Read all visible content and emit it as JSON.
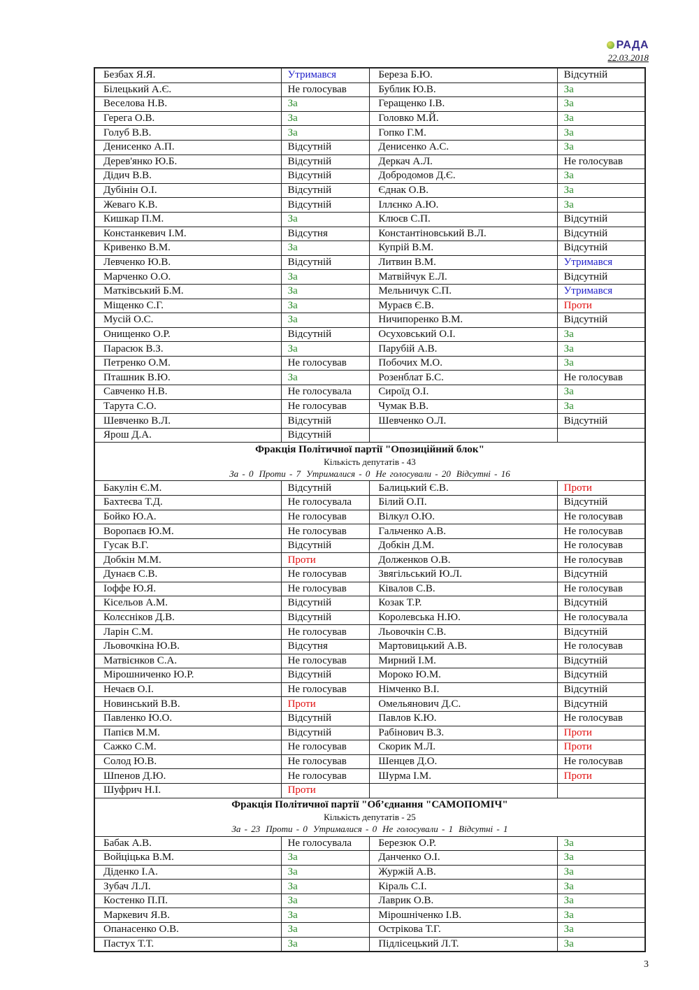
{
  "header": {
    "logo_text": "РАДА",
    "date": "22.03.2018"
  },
  "page_number": "3",
  "vote_colors": {
    "За": "#2a8a2a",
    "Проти": "#e01010",
    "Утримався": "#1c1cc8"
  },
  "sections": [
    {
      "rows": [
        [
          "Безбах Я.Я.",
          "Утримався",
          "Береза Б.Ю.",
          "Відсутній"
        ],
        [
          "Білецький А.Є.",
          "Не голосував",
          "Бублик Ю.В.",
          "За"
        ],
        [
          "Веселова Н.В.",
          "За",
          "Геращенко І.В.",
          "За"
        ],
        [
          "Герега О.В.",
          "За",
          "Головко М.Й.",
          "За"
        ],
        [
          "Голуб В.В.",
          "За",
          "Гопко Г.М.",
          "За"
        ],
        [
          "Денисенко А.П.",
          "Відсутній",
          "Денисенко А.С.",
          "За"
        ],
        [
          "Дерев'янко Ю.Б.",
          "Відсутній",
          "Деркач А.Л.",
          "Не голосував"
        ],
        [
          "Дідич В.В.",
          "Відсутній",
          "Добродомов Д.Є.",
          "За"
        ],
        [
          "Дубінін О.І.",
          "Відсутній",
          "Єднак О.В.",
          "За"
        ],
        [
          "Жеваго К.В.",
          "Відсутній",
          "Іллєнко А.Ю.",
          "За"
        ],
        [
          "Кишкар П.М.",
          "За",
          "Клюєв С.П.",
          "Відсутній"
        ],
        [
          "Констанкевич І.М.",
          "Відсутня",
          "Константіновський В.Л.",
          "Відсутній"
        ],
        [
          "Кривенко В.М.",
          "За",
          "Купрій В.М.",
          "Відсутній"
        ],
        [
          "Левченко Ю.В.",
          "Відсутній",
          "Литвин В.М.",
          "Утримався"
        ],
        [
          "Марченко О.О.",
          "За",
          "Матвійчук Е.Л.",
          "Відсутній"
        ],
        [
          "Матківський Б.М.",
          "За",
          "Мельничук С.П.",
          "Утримався"
        ],
        [
          "Міщенко С.Г.",
          "За",
          "Мураєв Є.В.",
          "Проти"
        ],
        [
          "Мусій О.С.",
          "За",
          "Ничипоренко В.М.",
          "Відсутній"
        ],
        [
          "Онищенко О.Р.",
          "Відсутній",
          "Осуховський О.І.",
          "За"
        ],
        [
          "Парасюк В.З.",
          "За",
          "Парубій А.В.",
          "За"
        ],
        [
          "Петренко О.М.",
          "Не голосував",
          "Побочих М.О.",
          "За"
        ],
        [
          "Пташник В.Ю.",
          "За",
          "Розенблат Б.С.",
          "Не голосував"
        ],
        [
          "Савченко Н.В.",
          "Не голосувала",
          "Сироїд О.І.",
          "За"
        ],
        [
          "Тарута С.О.",
          "Не голосував",
          "Чумак В.В.",
          "За"
        ],
        [
          "Шевченко В.Л.",
          "Відсутній",
          "Шевченко О.Л.",
          "Відсутній"
        ],
        [
          "Ярош Д.А.",
          "Відсутній",
          "",
          ""
        ]
      ]
    },
    {
      "title": "Фракція Політичної партії \"Опозиційний блок\"",
      "count": "Кількість депутатів - 43",
      "summary": [
        "За - 0",
        "Проти - 7",
        "Утрималися - 0",
        "Не голосували - 20",
        "Відсутні - 16"
      ],
      "rows": [
        [
          "Бакулін Є.М.",
          "Відсутній",
          "Балицький Є.В.",
          "Проти"
        ],
        [
          "Бахтеєва Т.Д.",
          "Не голосувала",
          "Білий О.П.",
          "Відсутній"
        ],
        [
          "Бойко Ю.А.",
          "Не голосував",
          "Вілкул О.Ю.",
          "Не голосував"
        ],
        [
          "Воропаєв Ю.М.",
          "Не голосував",
          "Гальченко А.В.",
          "Не голосував"
        ],
        [
          "Гусак В.Г.",
          "Відсутній",
          "Добкін Д.М.",
          "Не голосував"
        ],
        [
          "Добкін М.М.",
          "Проти",
          "Долженков О.В.",
          "Не голосував"
        ],
        [
          "Дунаєв С.В.",
          "Не голосував",
          "Звягільський Ю.Л.",
          "Відсутній"
        ],
        [
          "Іоффе Ю.Я.",
          "Не голосував",
          "Ківалов С.В.",
          "Не голосував"
        ],
        [
          "Кісельов А.М.",
          "Відсутній",
          "Козак Т.Р.",
          "Відсутній"
        ],
        [
          "Колєсніков Д.В.",
          "Відсутній",
          "Королевська Н.Ю.",
          "Не голосувала"
        ],
        [
          "Ларін С.М.",
          "Не голосував",
          "Льовочкін С.В.",
          "Відсутній"
        ],
        [
          "Льовочкіна Ю.В.",
          "Відсутня",
          "Мартовицький А.В.",
          "Не голосував"
        ],
        [
          "Матвієнков С.А.",
          "Не голосував",
          "Мирний І.М.",
          "Відсутній"
        ],
        [
          "Мірошниченко Ю.Р.",
          "Відсутній",
          "Мороко Ю.М.",
          "Відсутній"
        ],
        [
          "Нечаєв О.І.",
          "Не голосував",
          "Німченко В.І.",
          "Відсутній"
        ],
        [
          "Новинський В.В.",
          "Проти",
          "Омельянович Д.С.",
          "Відсутній"
        ],
        [
          "Павленко Ю.О.",
          "Відсутній",
          "Павлов К.Ю.",
          "Не голосував"
        ],
        [
          "Папієв М.М.",
          "Відсутній",
          "Рабінович В.З.",
          "Проти"
        ],
        [
          "Сажко С.М.",
          "Не голосував",
          "Скорик М.Л.",
          "Проти"
        ],
        [
          "Солод Ю.В.",
          "Не голосував",
          "Шенцев Д.О.",
          "Не голосував"
        ],
        [
          "Шпенов Д.Ю.",
          "Не голосував",
          "Шурма І.М.",
          "Проти"
        ],
        [
          "Шуфрич Н.І.",
          "Проти",
          "",
          ""
        ]
      ]
    },
    {
      "title": "Фракція Політичної партії \"Об’єднання \"САМОПОМІЧ\"",
      "count": "Кількість депутатів - 25",
      "summary": [
        "За - 23",
        "Проти - 0",
        "Утрималися - 0",
        "Не голосували - 1",
        "Відсутні - 1"
      ],
      "rows": [
        [
          "Бабак А.В.",
          "Не голосувала",
          "Березюк О.Р.",
          "За"
        ],
        [
          "Войціцька В.М.",
          "За",
          "Данченко О.І.",
          "За"
        ],
        [
          "Діденко І.А.",
          "За",
          "Журжій А.В.",
          "За"
        ],
        [
          "Зубач Л.Л.",
          "За",
          "Кіраль С.І.",
          "За"
        ],
        [
          "Костенко П.П.",
          "За",
          "Лаврик О.В.",
          "За"
        ],
        [
          "Маркевич Я.В.",
          "За",
          "Мірошніченко І.В.",
          "За"
        ],
        [
          "Опанасенко О.В.",
          "За",
          "Острікова Т.Г.",
          "За"
        ],
        [
          "Пастух Т.Т.",
          "За",
          "Підлісецький Л.Т.",
          "За"
        ]
      ]
    }
  ]
}
